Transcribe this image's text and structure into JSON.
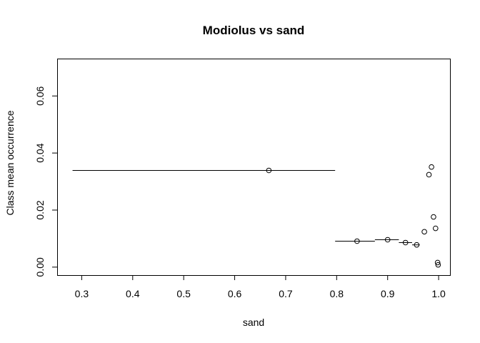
{
  "chart_data": {
    "type": "scatter",
    "title": "Modiolus vs sand",
    "xlabel": "sand",
    "ylabel": "Class mean occurrence",
    "xlim": [
      0.2518,
      1.0223
    ],
    "ylim": [
      -0.0028,
      0.0731
    ],
    "xticks": [
      0.3,
      0.4,
      0.5,
      0.6,
      0.7,
      0.8,
      0.9,
      1.0
    ],
    "xtick_labels": [
      "0.3",
      "0.4",
      "0.5",
      "0.6",
      "0.7",
      "0.8",
      "0.9",
      "1.0"
    ],
    "yticks": [
      0.0,
      0.02,
      0.04,
      0.06
    ],
    "ytick_labels": [
      "0.00",
      "0.02",
      "0.04",
      "0.06"
    ],
    "grid": false,
    "points": [
      {
        "x": 0.667,
        "y": 0.0339,
        "xmin": 0.282,
        "xmax": 0.797
      },
      {
        "x": 0.84,
        "y": 0.0091,
        "xmin": 0.797,
        "xmax": 0.875
      },
      {
        "x": 0.9,
        "y": 0.0096,
        "xmin": 0.875,
        "xmax": 0.922
      },
      {
        "x": 0.935,
        "y": 0.0086,
        "xmin": 0.922,
        "xmax": 0.948
      },
      {
        "x": 0.957,
        "y": 0.0078,
        "xmin": 0.948,
        "xmax": 0.963
      },
      {
        "x": 0.972,
        "y": 0.0124
      },
      {
        "x": 0.981,
        "y": 0.0324
      },
      {
        "x": 0.986,
        "y": 0.0351
      },
      {
        "x": 0.99,
        "y": 0.0176
      },
      {
        "x": 0.994,
        "y": 0.0136
      },
      {
        "x": 0.998,
        "y": 0.0016
      },
      {
        "x": 0.999,
        "y": 0.0008
      }
    ]
  }
}
